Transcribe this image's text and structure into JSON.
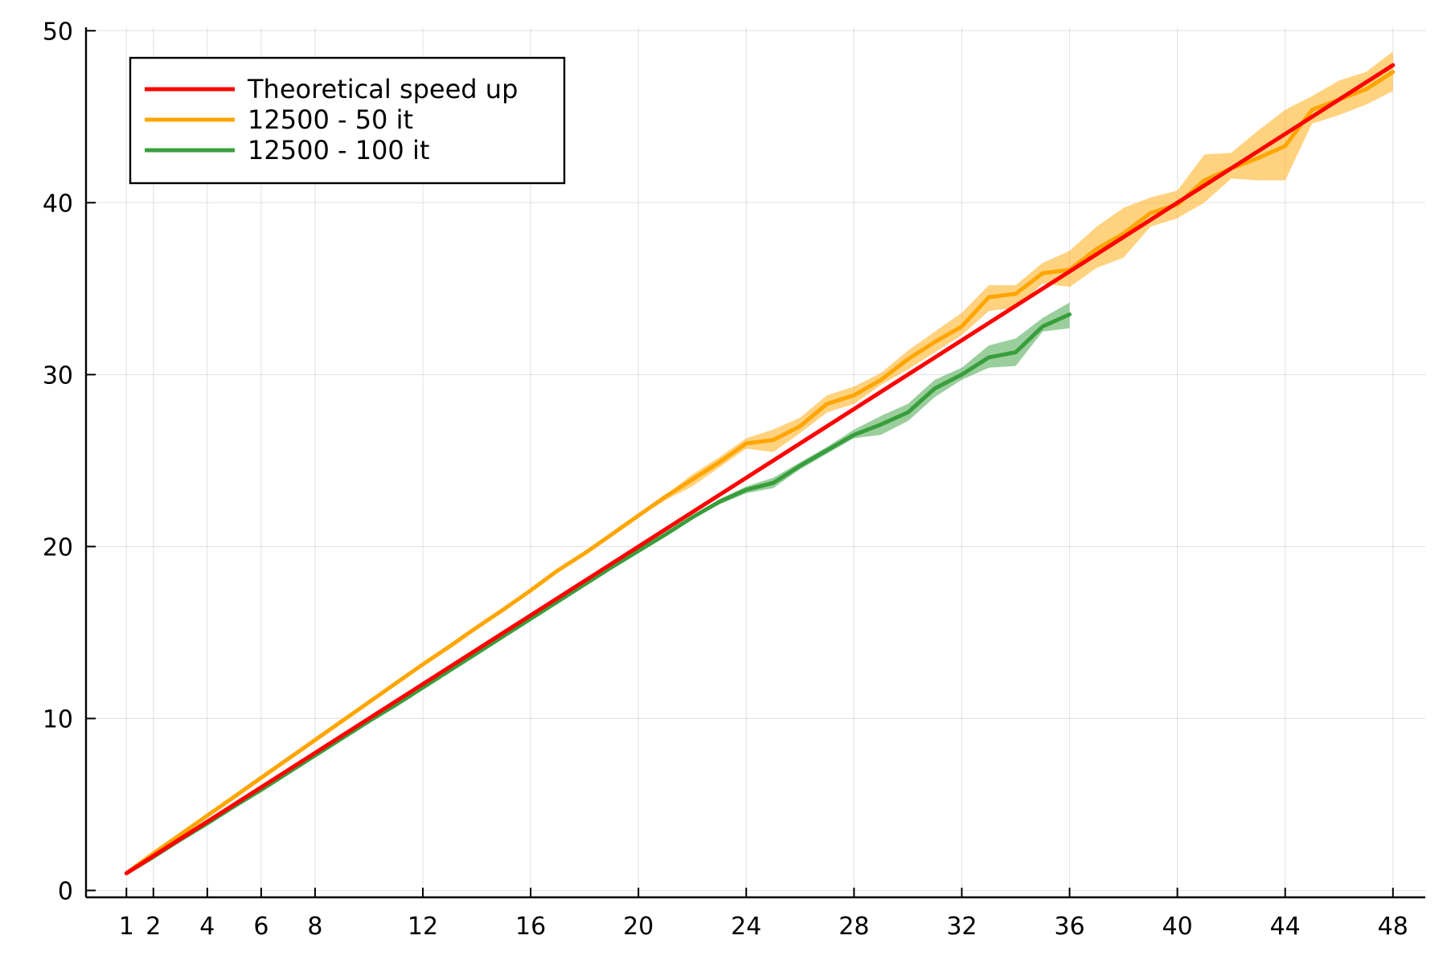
{
  "chart_data": {
    "type": "line",
    "title": "",
    "xlabel": "",
    "ylabel": "",
    "xlim": [
      -0.5,
      49.2
    ],
    "ylim": [
      -0.4,
      50.2
    ],
    "x_ticks": [
      1,
      2,
      4,
      6,
      8,
      12,
      16,
      20,
      24,
      28,
      32,
      36,
      40,
      44,
      48
    ],
    "y_ticks": [
      0,
      10,
      20,
      30,
      40,
      50
    ],
    "grid": true,
    "legend_position": "top-left",
    "series": [
      {
        "name": "Theoretical speed up",
        "color": "#ff0000",
        "x": [
          1,
          48
        ],
        "y": [
          1,
          48
        ]
      },
      {
        "name": "12500 - 50 it",
        "color": "#ffa500",
        "x": [
          1,
          2,
          3,
          4,
          5,
          6,
          7,
          8,
          9,
          10,
          11,
          12,
          13,
          14,
          15,
          16,
          17,
          18,
          19,
          20,
          21,
          22,
          23,
          24,
          25,
          26,
          27,
          28,
          29,
          30,
          31,
          32,
          33,
          34,
          35,
          36,
          37,
          38,
          39,
          40,
          41,
          42,
          43,
          44,
          45,
          46,
          47,
          48
        ],
        "y": [
          1,
          2.15,
          3.25,
          4.35,
          5.45,
          6.55,
          7.65,
          8.75,
          9.85,
          10.95,
          12.05,
          13.15,
          14.2,
          15.3,
          16.35,
          17.45,
          18.6,
          19.6,
          20.7,
          21.8,
          22.9,
          23.9,
          24.9,
          26.0,
          26.2,
          27.0,
          28.3,
          28.8,
          29.7,
          30.9,
          31.9,
          32.8,
          34.5,
          34.7,
          35.9,
          36.1,
          37.3,
          38.2,
          39.4,
          39.9,
          41.3,
          42.0,
          42.6,
          43.3,
          45.4,
          46.0,
          46.6,
          47.6
        ],
        "band_lower": [
          1,
          2.1,
          3.2,
          4.3,
          5.4,
          6.5,
          7.6,
          8.7,
          9.8,
          10.9,
          12.0,
          13.1,
          14.1,
          15.2,
          16.3,
          17.4,
          18.5,
          19.5,
          20.6,
          21.7,
          22.7,
          23.5,
          24.6,
          25.7,
          25.5,
          26.6,
          27.8,
          28.3,
          29.4,
          30.3,
          31.3,
          32.3,
          33.7,
          33.9,
          35.3,
          35.1,
          36.2,
          36.8,
          38.6,
          39.1,
          40.0,
          41.4,
          41.3,
          41.3,
          44.6,
          45.1,
          45.7,
          46.5
        ],
        "band_upper": [
          1,
          2.2,
          3.3,
          4.4,
          5.5,
          6.6,
          7.7,
          8.8,
          9.9,
          11.0,
          12.1,
          13.2,
          14.3,
          15.4,
          16.4,
          17.5,
          18.7,
          19.7,
          20.8,
          21.9,
          23.0,
          24.2,
          25.2,
          26.3,
          26.8,
          27.5,
          28.8,
          29.3,
          30.1,
          31.4,
          32.5,
          33.6,
          35.2,
          35.2,
          36.5,
          37.2,
          38.6,
          39.7,
          40.3,
          40.7,
          42.8,
          42.9,
          44.2,
          45.4,
          46.2,
          47.1,
          47.6,
          48.8
        ]
      },
      {
        "name": "12500 - 100 it",
        "color": "#389e3c",
        "x": [
          1,
          2,
          3,
          4,
          5,
          6,
          7,
          8,
          9,
          10,
          11,
          12,
          13,
          14,
          15,
          16,
          17,
          18,
          19,
          20,
          21,
          22,
          23,
          24,
          25,
          26,
          27,
          28,
          29,
          30,
          31,
          32,
          33,
          34,
          35,
          36
        ],
        "y": [
          1,
          1.95,
          2.95,
          3.9,
          4.9,
          5.85,
          6.85,
          7.85,
          8.85,
          9.85,
          10.8,
          11.8,
          12.8,
          13.8,
          14.8,
          15.8,
          16.8,
          17.8,
          18.8,
          19.75,
          20.7,
          21.7,
          22.6,
          23.3,
          23.7,
          24.7,
          25.6,
          26.5,
          27.1,
          27.8,
          29.2,
          30.0,
          31.0,
          31.3,
          32.8,
          33.5
        ],
        "band_lower": [
          1,
          1.9,
          2.9,
          3.85,
          4.85,
          5.8,
          6.8,
          7.8,
          8.8,
          9.8,
          10.75,
          11.75,
          12.75,
          13.75,
          14.75,
          15.75,
          16.75,
          17.75,
          18.75,
          19.7,
          20.65,
          21.6,
          22.45,
          23.1,
          23.4,
          24.5,
          25.4,
          26.3,
          26.5,
          27.3,
          28.7,
          29.7,
          30.4,
          30.5,
          32.5,
          32.7
        ],
        "band_upper": [
          1,
          2.0,
          3.0,
          3.95,
          4.95,
          5.9,
          6.9,
          7.9,
          8.9,
          9.9,
          10.85,
          11.85,
          12.85,
          13.85,
          14.85,
          15.85,
          16.85,
          17.85,
          18.85,
          19.8,
          20.75,
          21.8,
          22.75,
          23.5,
          24.0,
          24.9,
          25.8,
          26.8,
          27.6,
          28.3,
          29.7,
          30.4,
          31.7,
          32.1,
          33.3,
          34.2
        ]
      }
    ]
  }
}
